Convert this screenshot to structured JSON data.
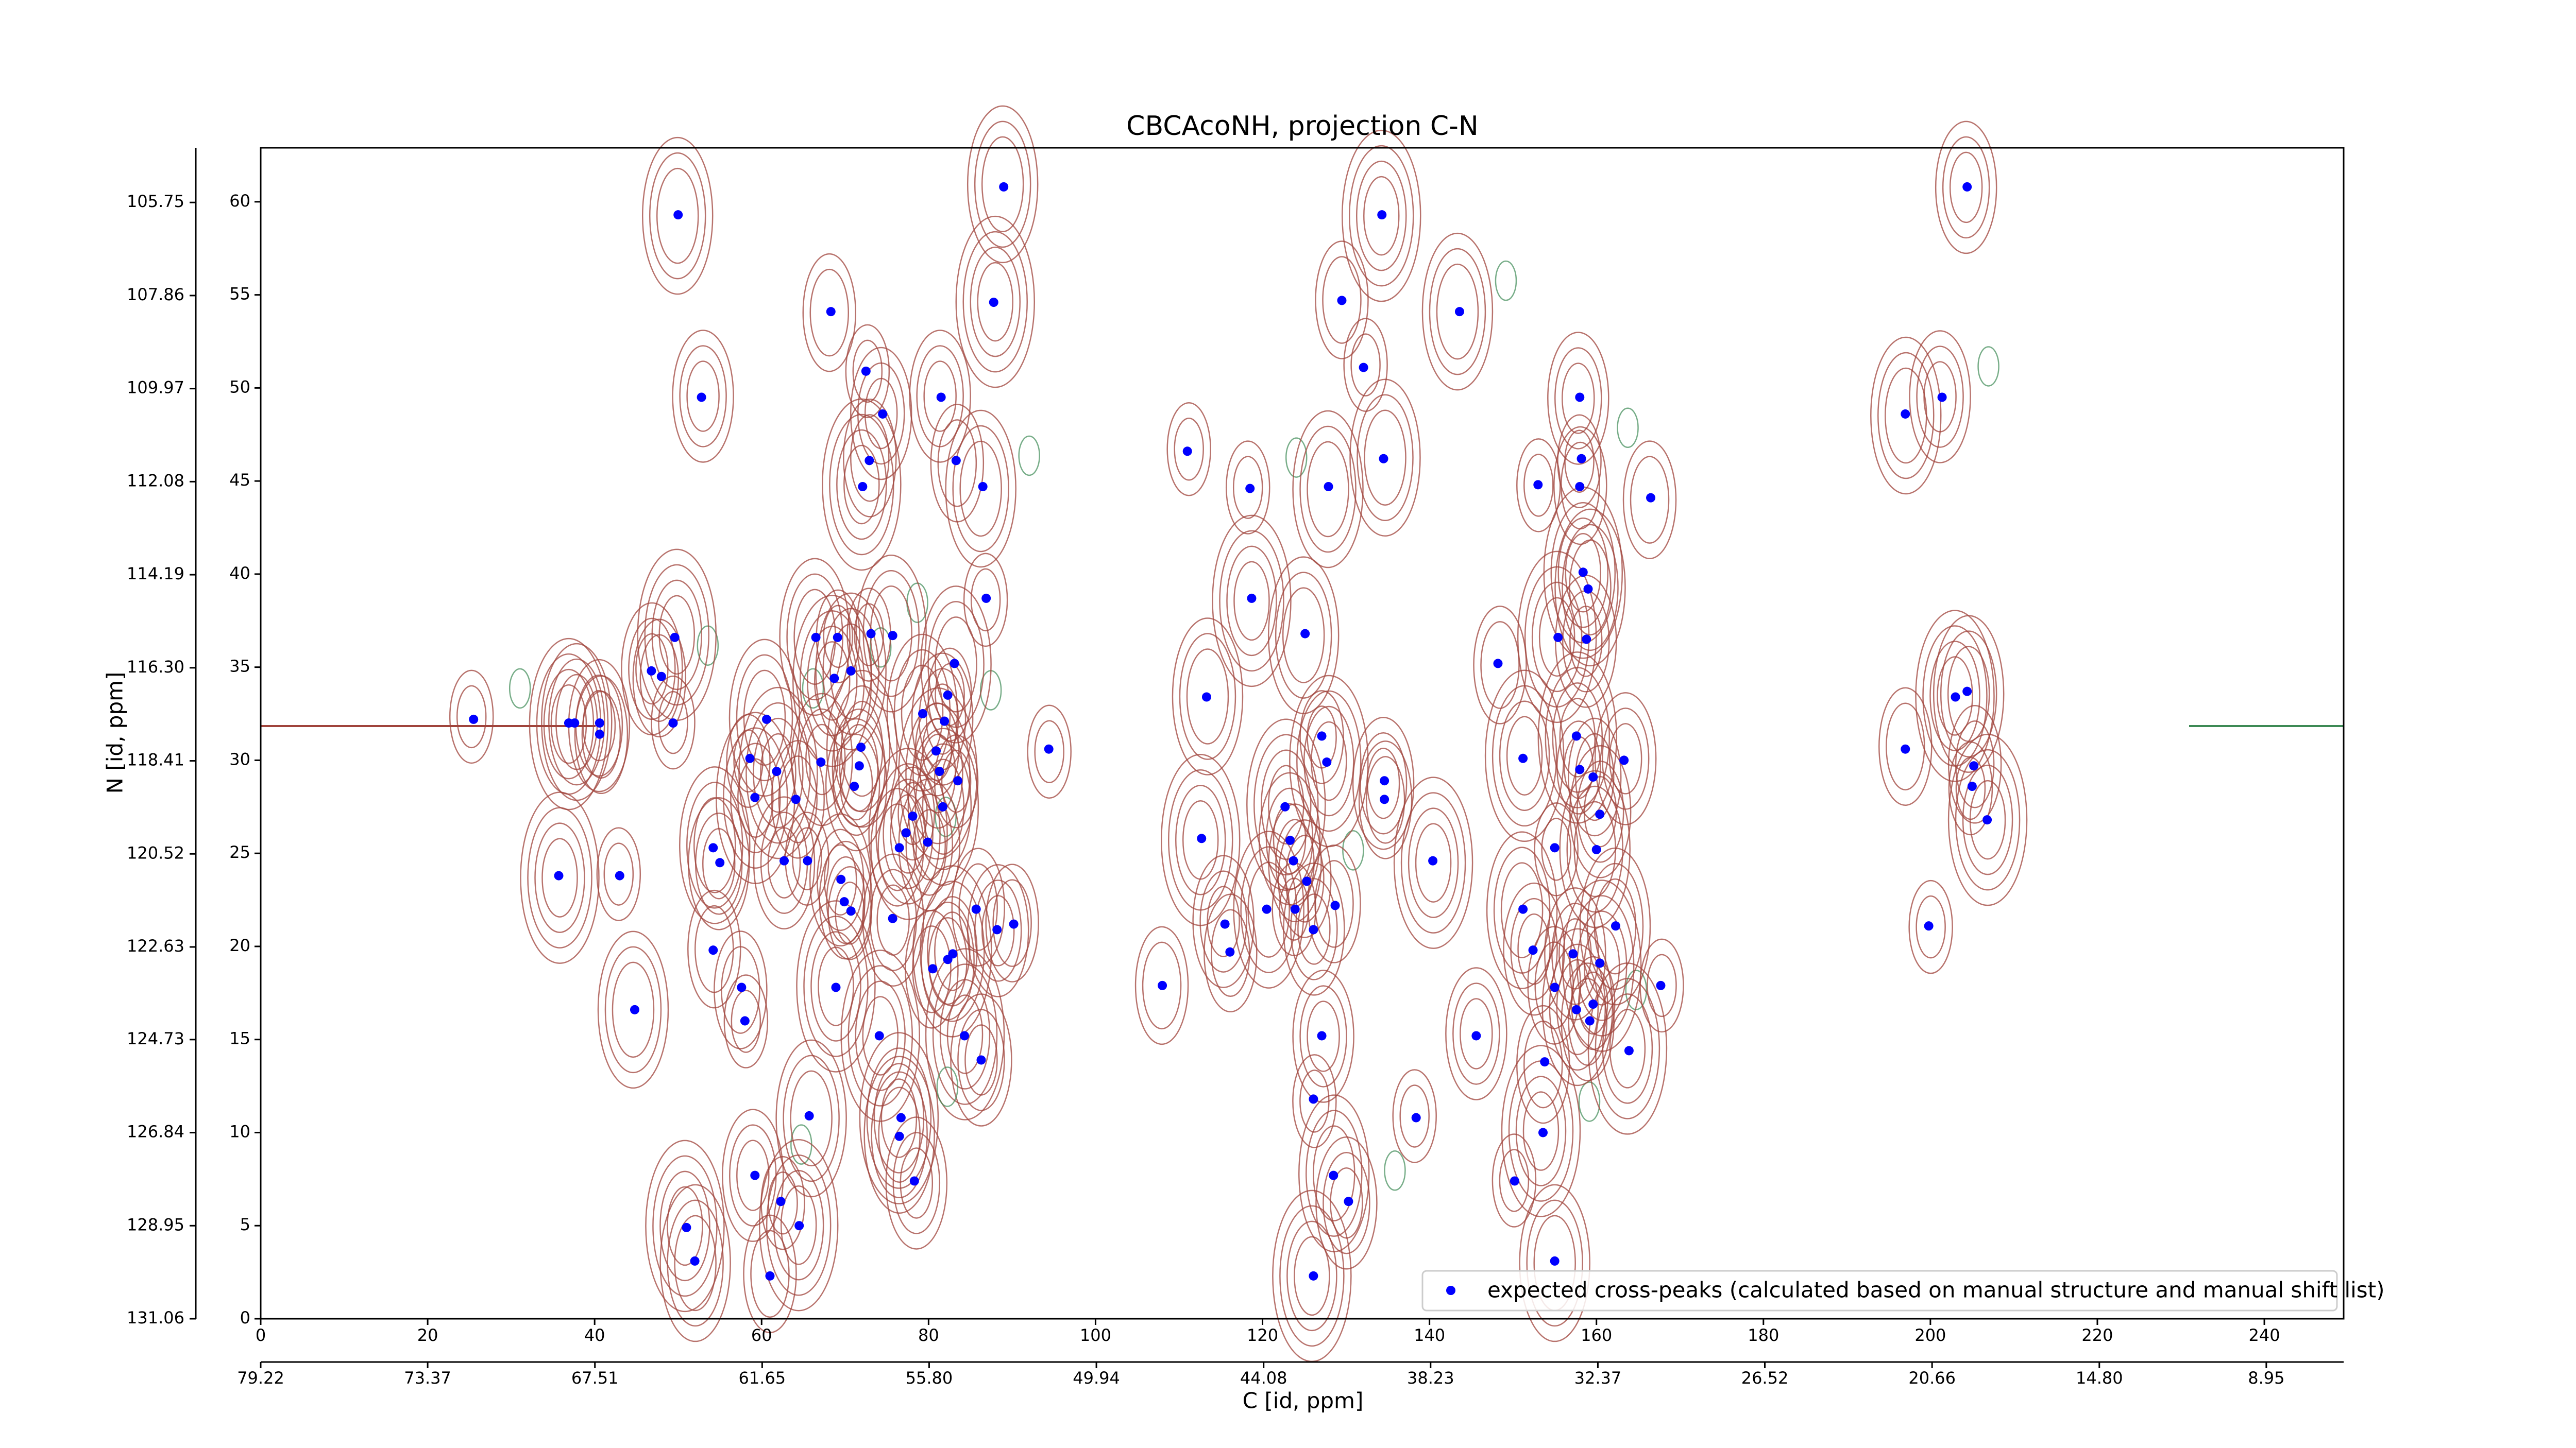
{
  "chart_data": {
    "type": "scatter",
    "title": "CBCAcoNH, projection C-N",
    "x_label": "C [id, ppm]",
    "y_label": "N [id, ppm]",
    "xlim": [
      0,
      249.5
    ],
    "ylim": [
      0,
      62.9
    ],
    "xticks": [
      0,
      20,
      40,
      60,
      80,
      100,
      120,
      140,
      160,
      180,
      200,
      220,
      240
    ],
    "yticks": [
      0,
      5,
      10,
      15,
      20,
      25,
      30,
      35,
      40,
      45,
      50,
      55,
      60
    ],
    "x2lim": [
      79.22,
      6.24
    ],
    "x2ticks": [
      79.22,
      73.37,
      67.51,
      61.65,
      {
        "value": 55.8,
        "label": "55.80"
      },
      49.94,
      44.08,
      38.23,
      32.37,
      26.52,
      20.66,
      {
        "value": 14.8,
        "label": "14.80"
      },
      8.95
    ],
    "y2lim": [
      131.06,
      104.51
    ],
    "y2ticks": [
      131.06,
      128.95,
      126.84,
      124.73,
      122.63,
      120.52,
      118.41,
      {
        "value": 116.3,
        "label": "116.30"
      },
      114.19,
      112.08,
      109.97,
      107.86,
      105.75
    ],
    "legend": "lower right",
    "series": [
      {
        "name": "expected cross-peaks (calculated based on manual structure and manual shift list)",
        "color": "#0000ff",
        "x": [
          25.5,
          36.9,
          37.6,
          40.6,
          40.6,
          43.0,
          35.7,
          44.8,
          46.8,
          48.0,
          49.4,
          49.6,
          50.0,
          52.8,
          57.6,
          58.0,
          51.0,
          52.0,
          59.2,
          61.0,
          62.3,
          64.5,
          54.2,
          55.0,
          54.2,
          58.6,
          59.2,
          60.6,
          62.7,
          64.1,
          65.5,
          61.8,
          66.5,
          67.1,
          68.3,
          69.1,
          68.7,
          70.7,
          71.1,
          71.7,
          72.5,
          72.1,
          71.9,
          74.5,
          72.9,
          73.1,
          68.9,
          65.7,
          69.5,
          69.9,
          70.7,
          74.1,
          75.7,
          75.7,
          76.5,
          78.1,
          77.3,
          79.3,
          79.9,
          80.5,
          80.9,
          81.3,
          81.7,
          81.9,
          82.3,
          82.3,
          82.9,
          83.1,
          81.5,
          83.3,
          83.5,
          84.3,
          86.5,
          86.3,
          85.7,
          86.9,
          87.8,
          89.0,
          88.2,
          90.2,
          94.4,
          76.7,
          76.5,
          78.3,
          108.0,
          111.0,
          112.7,
          113.3,
          115.5,
          116.1,
          118.5,
          118.7,
          120.5,
          123.3,
          123.7,
          123.9,
          122.7,
          125.1,
          126.1,
          125.3,
          127.1,
          127.7,
          127.9,
          127.1,
          128.7,
          126.1,
          126.1,
          128.5,
          130.3,
          129.5,
          132.1,
          134.3,
          134.5,
          134.6,
          134.6,
          138.4,
          140.4,
          143.6,
          145.6,
          148.2,
          150.2,
          151.2,
          151.2,
          152.4,
          153.8,
          153.0,
          153.6,
          155.0,
          157.2,
          155.0,
          155.0,
          155.4,
          157.6,
          158.0,
          158.0,
          158.2,
          158.4,
          159.0,
          158.8,
          159.6,
          158.0,
          157.6,
          160.0,
          160.4,
          159.2,
          159.6,
          160.4,
          162.3,
          163.3,
          166.5,
          167.7,
          163.9,
          197.0,
          201.4,
          197.0,
          199.8,
          203.0,
          204.4,
          204.4,
          205.2,
          205.0,
          206.8
        ],
        "values": [
          32.2,
          32.0,
          32.0,
          32.0,
          31.4,
          23.8,
          23.8,
          16.6,
          34.8,
          34.5,
          32.0,
          36.6,
          59.3,
          49.5,
          17.8,
          16.0,
          4.9,
          3.1,
          7.7,
          2.3,
          6.3,
          5.0,
          25.3,
          24.5,
          19.8,
          30.1,
          28.0,
          32.2,
          24.6,
          27.9,
          24.6,
          29.4,
          36.6,
          29.9,
          54.1,
          36.6,
          34.4,
          34.8,
          28.6,
          29.7,
          50.9,
          44.7,
          30.7,
          48.6,
          46.1,
          36.8,
          17.8,
          10.9,
          23.6,
          22.4,
          21.9,
          15.2,
          36.7,
          21.5,
          25.3,
          27.0,
          26.1,
          32.5,
          25.6,
          18.8,
          30.5,
          29.4,
          27.5,
          32.1,
          19.3,
          33.5,
          19.6,
          35.2,
          49.5,
          46.1,
          28.9,
          15.2,
          44.7,
          13.9,
          22.0,
          38.7,
          54.6,
          60.8,
          20.9,
          21.2,
          30.6,
          10.8,
          9.8,
          7.4,
          17.9,
          46.6,
          25.8,
          33.4,
          21.2,
          19.7,
          44.6,
          38.7,
          22.0,
          25.7,
          24.6,
          22.0,
          27.5,
          36.8,
          20.9,
          23.5,
          31.3,
          29.9,
          44.7,
          15.2,
          22.2,
          11.8,
          2.3,
          7.7,
          6.3,
          54.7,
          51.1,
          59.3,
          46.2,
          28.9,
          27.9,
          10.8,
          24.6,
          54.1,
          15.2,
          35.2,
          7.4,
          30.1,
          22.0,
          19.8,
          13.8,
          44.8,
          10.0,
          3.1,
          19.6,
          17.8,
          25.3,
          36.6,
          16.6,
          49.5,
          44.7,
          46.2,
          40.1,
          39.2,
          36.5,
          29.1,
          29.5,
          31.3,
          25.2,
          27.1,
          16.0,
          16.9,
          19.1,
          21.1,
          30.0,
          44.1,
          17.9,
          14.4,
          48.6,
          49.5,
          30.6,
          21.1,
          33.4,
          33.7,
          60.8,
          29.7,
          28.6,
          26.8
        ]
      }
    ]
  }
}
